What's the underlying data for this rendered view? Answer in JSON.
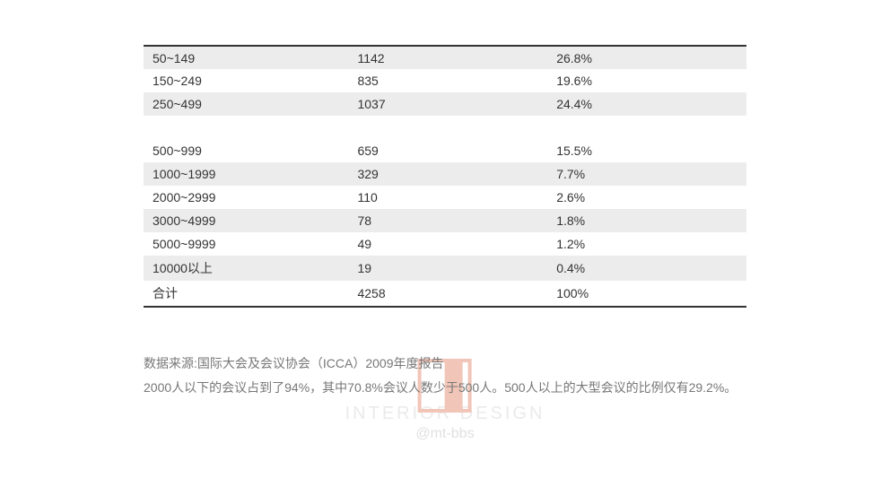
{
  "table": {
    "rows": [
      {
        "range": "50~149",
        "count": "1142",
        "percent": "26.8%",
        "shaded": true
      },
      {
        "range": "150~249",
        "count": "835",
        "percent": "19.6%",
        "shaded": false
      },
      {
        "range": "250~499",
        "count": "1037",
        "percent": "24.4%",
        "shaded": true
      },
      {
        "range": "500~999",
        "count": "659",
        "percent": "15.5%",
        "shaded": false,
        "spacerBefore": true
      },
      {
        "range": "1000~1999",
        "count": "329",
        "percent": "7.7%",
        "shaded": true
      },
      {
        "range": "2000~2999",
        "count": "110",
        "percent": "2.6%",
        "shaded": false
      },
      {
        "range": "3000~4999",
        "count": "78",
        "percent": "1.8%",
        "shaded": true
      },
      {
        "range": "5000~9999",
        "count": "49",
        "percent": "1.2%",
        "shaded": false
      },
      {
        "range": "10000以上",
        "count": "19",
        "percent": "0.4%",
        "shaded": true
      },
      {
        "range": "合计",
        "count": "4258",
        "percent": "100%",
        "shaded": false
      }
    ]
  },
  "watermark": {
    "line1": "INTERIOR DESIGN",
    "line2": "@mt-bbs"
  },
  "footer": {
    "line1": "数据来源:国际大会及会议协会（ICCA）2009年度报告",
    "line2": "2000人以下的会议占到了94%，其中70.8%会议人数少于500人。500人以上的大型会议的比例仅有29.2%。"
  }
}
